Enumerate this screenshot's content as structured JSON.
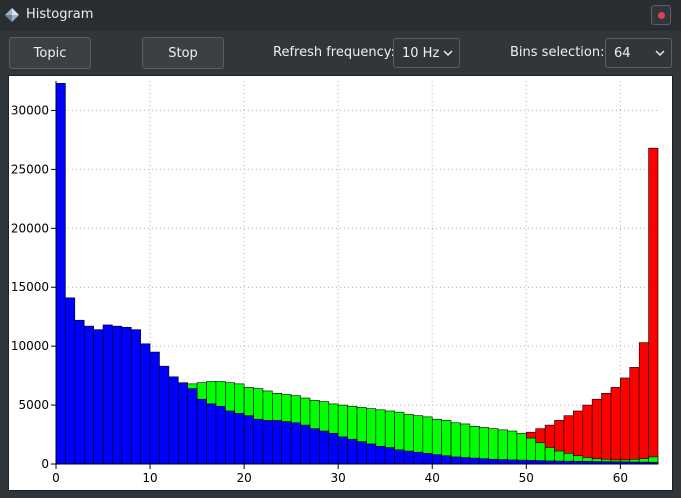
{
  "window": {
    "title": "Histogram",
    "icon": "diamond-app-icon",
    "close_icon": "close-icon"
  },
  "toolbar": {
    "topic_label": "Topic",
    "stop_label": "Stop",
    "refresh_label": "Refresh frequency:",
    "refresh_value": "10 Hz",
    "bins_label": "Bins selection:",
    "bins_value": "64"
  },
  "chart_data": {
    "type": "bar",
    "stacking": "overlaid",
    "xlim": [
      0,
      64
    ],
    "ylim": [
      0,
      32500
    ],
    "xticks": [
      0,
      10,
      20,
      30,
      40,
      50,
      60
    ],
    "yticks": [
      0,
      5000,
      10000,
      15000,
      20000,
      25000,
      30000
    ],
    "grid": true,
    "series": [
      {
        "color": "#ff0000",
        "values": [
          0,
          0,
          0,
          0,
          0,
          0,
          0,
          0,
          0,
          0,
          0,
          0,
          0,
          0,
          0,
          0,
          0,
          0,
          0,
          0,
          0,
          0,
          0,
          0,
          0,
          0,
          0,
          0,
          0,
          0,
          0,
          0,
          0,
          0,
          0,
          0,
          0,
          0,
          0,
          0,
          0,
          0,
          0,
          0,
          0,
          0,
          0,
          0,
          0,
          2400,
          2700,
          3000,
          3300,
          3700,
          4100,
          4500,
          5000,
          5500,
          6000,
          6500,
          7300,
          8200,
          10300,
          26800
        ]
      },
      {
        "color": "#00ff00",
        "values": [
          0,
          0,
          0,
          0,
          0,
          0,
          0,
          0,
          0,
          0,
          0,
          0,
          0,
          6600,
          6800,
          6900,
          7000,
          7000,
          6900,
          6800,
          6500,
          6400,
          6200,
          6000,
          5900,
          5800,
          5600,
          5400,
          5300,
          5100,
          5000,
          4900,
          4800,
          4700,
          4600,
          4500,
          4400,
          4200,
          4100,
          4000,
          3800,
          3700,
          3500,
          3400,
          3200,
          3100,
          3000,
          2900,
          2800,
          2600,
          2200,
          1800,
          1400,
          1100,
          900,
          700,
          550,
          450,
          400,
          350,
          350,
          400,
          450,
          600
        ]
      },
      {
        "color": "#0000ff",
        "values": [
          32300,
          14100,
          12200,
          11700,
          11400,
          11800,
          11700,
          11600,
          11400,
          10200,
          9500,
          8300,
          7400,
          6900,
          6400,
          5500,
          5100,
          4900,
          4500,
          4300,
          4100,
          3800,
          3700,
          3700,
          3600,
          3500,
          3300,
          3000,
          2800,
          2600,
          2300,
          2100,
          1900,
          1700,
          1500,
          1400,
          1200,
          1100,
          1000,
          900,
          800,
          700,
          600,
          550,
          500,
          450,
          400,
          380,
          350,
          330,
          310,
          290,
          270,
          250,
          240,
          230,
          220,
          210,
          200,
          190,
          180,
          170,
          160,
          150
        ]
      }
    ]
  }
}
